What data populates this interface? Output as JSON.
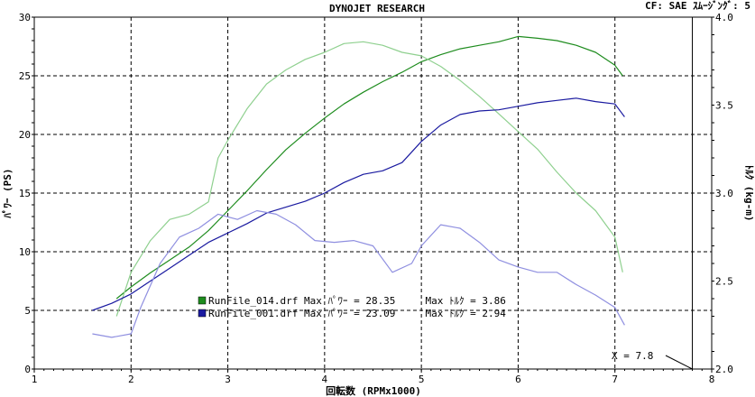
{
  "header": {
    "title": "DYNOJET  RESEARCH",
    "right": "CF: SAE  ｽﾑｰｼﾞﾝｸﾞ: 5"
  },
  "colors": {
    "power_green": "#1e8c1e",
    "torque_green": "#8fd08f",
    "power_blue": "#1a1aa0",
    "torque_blue": "#8f8fe0"
  },
  "chart_data": {
    "type": "line",
    "xlabel": "回転数 (RPMx1000)",
    "ylabel_left": "ﾊﾟﾜｰ (PS)",
    "ylabel_right": "ﾄﾙｸ (kg-m)",
    "xlim": [
      1,
      8
    ],
    "ylim_left": [
      0,
      30
    ],
    "ylim_right": [
      2.0,
      4.0
    ],
    "x_ticks": [
      "1",
      "2",
      "3",
      "4",
      "5",
      "6",
      "7",
      "8"
    ],
    "y_ticks_left": [
      "0",
      "5",
      "10",
      "15",
      "20",
      "25",
      "30"
    ],
    "y_ticks_right": [
      "2.0",
      "2.5",
      "3.0",
      "3.5",
      "4.0"
    ],
    "grid": true,
    "cursor": {
      "x": 7.8,
      "label": "X = 7.8"
    },
    "legend": [
      {
        "file": "RunFile_014.drf",
        "text": "RunFile_014.drf Max ﾊﾟﾜｰ = 28.35     Max ﾄﾙｸ = 3.86",
        "color": "#1e8c1e"
      },
      {
        "file": "RunFile_001.drf",
        "text": "RunFile_001.drf Max ﾊﾟﾜｰ = 23.09     Max ﾄﾙｸ = 2.94",
        "color": "#1a1aa0"
      }
    ],
    "series": [
      {
        "name": "RunFile_014.drf ﾊﾟﾜｰ",
        "axis": "left",
        "color": "#1e8c1e",
        "points": [
          [
            1.85,
            6.0
          ],
          [
            2.0,
            7.0
          ],
          [
            2.2,
            8.2
          ],
          [
            2.4,
            9.3
          ],
          [
            2.6,
            10.4
          ],
          [
            2.8,
            11.8
          ],
          [
            3.0,
            13.5
          ],
          [
            3.2,
            15.2
          ],
          [
            3.4,
            17.0
          ],
          [
            3.6,
            18.7
          ],
          [
            3.8,
            20.1
          ],
          [
            4.0,
            21.4
          ],
          [
            4.2,
            22.6
          ],
          [
            4.4,
            23.6
          ],
          [
            4.6,
            24.5
          ],
          [
            4.8,
            25.3
          ],
          [
            5.0,
            26.2
          ],
          [
            5.2,
            26.8
          ],
          [
            5.4,
            27.3
          ],
          [
            5.6,
            27.6
          ],
          [
            5.8,
            27.9
          ],
          [
            6.0,
            28.35
          ],
          [
            6.2,
            28.2
          ],
          [
            6.4,
            28.0
          ],
          [
            6.6,
            27.6
          ],
          [
            6.8,
            27.0
          ],
          [
            7.0,
            25.9
          ],
          [
            7.08,
            25.0
          ]
        ]
      },
      {
        "name": "RunFile_014.drf ﾄﾙｸ",
        "axis": "right",
        "color": "#8fd08f",
        "points": [
          [
            1.85,
            2.3
          ],
          [
            2.0,
            2.55
          ],
          [
            2.2,
            2.73
          ],
          [
            2.4,
            2.85
          ],
          [
            2.6,
            2.88
          ],
          [
            2.8,
            2.95
          ],
          [
            2.9,
            3.2
          ],
          [
            3.0,
            3.3
          ],
          [
            3.2,
            3.48
          ],
          [
            3.4,
            3.62
          ],
          [
            3.6,
            3.7
          ],
          [
            3.8,
            3.76
          ],
          [
            4.0,
            3.8
          ],
          [
            4.2,
            3.85
          ],
          [
            4.4,
            3.86
          ],
          [
            4.6,
            3.84
          ],
          [
            4.8,
            3.8
          ],
          [
            5.0,
            3.78
          ],
          [
            5.2,
            3.72
          ],
          [
            5.4,
            3.64
          ],
          [
            5.6,
            3.55
          ],
          [
            5.8,
            3.45
          ],
          [
            6.0,
            3.35
          ],
          [
            6.2,
            3.25
          ],
          [
            6.4,
            3.12
          ],
          [
            6.6,
            3.0
          ],
          [
            6.8,
            2.9
          ],
          [
            7.0,
            2.75
          ],
          [
            7.08,
            2.55
          ]
        ]
      },
      {
        "name": "RunFile_001.drf ﾊﾟﾜｰ",
        "axis": "left",
        "color": "#1a1aa0",
        "points": [
          [
            1.6,
            5.0
          ],
          [
            1.8,
            5.6
          ],
          [
            2.0,
            6.4
          ],
          [
            2.2,
            7.5
          ],
          [
            2.4,
            8.6
          ],
          [
            2.6,
            9.7
          ],
          [
            2.8,
            10.8
          ],
          [
            3.0,
            11.6
          ],
          [
            3.2,
            12.4
          ],
          [
            3.4,
            13.3
          ],
          [
            3.6,
            13.8
          ],
          [
            3.8,
            14.3
          ],
          [
            4.0,
            15.0
          ],
          [
            4.2,
            15.9
          ],
          [
            4.4,
            16.6
          ],
          [
            4.6,
            16.9
          ],
          [
            4.8,
            17.6
          ],
          [
            5.0,
            19.4
          ],
          [
            5.2,
            20.8
          ],
          [
            5.4,
            21.7
          ],
          [
            5.6,
            22.0
          ],
          [
            5.8,
            22.1
          ],
          [
            6.0,
            22.4
          ],
          [
            6.2,
            22.7
          ],
          [
            6.4,
            22.9
          ],
          [
            6.6,
            23.09
          ],
          [
            6.8,
            22.8
          ],
          [
            7.0,
            22.6
          ],
          [
            7.1,
            21.5
          ]
        ]
      },
      {
        "name": "RunFile_001.drf ﾄﾙｸ",
        "axis": "right",
        "color": "#8f8fe0",
        "points": [
          [
            1.6,
            2.2
          ],
          [
            1.8,
            2.18
          ],
          [
            2.0,
            2.2
          ],
          [
            2.1,
            2.35
          ],
          [
            2.3,
            2.6
          ],
          [
            2.5,
            2.75
          ],
          [
            2.7,
            2.8
          ],
          [
            2.9,
            2.88
          ],
          [
            3.1,
            2.85
          ],
          [
            3.3,
            2.9
          ],
          [
            3.5,
            2.88
          ],
          [
            3.7,
            2.82
          ],
          [
            3.9,
            2.73
          ],
          [
            4.1,
            2.72
          ],
          [
            4.3,
            2.73
          ],
          [
            4.5,
            2.7
          ],
          [
            4.7,
            2.55
          ],
          [
            4.9,
            2.6
          ],
          [
            5.0,
            2.7
          ],
          [
            5.2,
            2.82
          ],
          [
            5.4,
            2.8
          ],
          [
            5.6,
            2.72
          ],
          [
            5.8,
            2.62
          ],
          [
            6.0,
            2.58
          ],
          [
            6.2,
            2.55
          ],
          [
            6.4,
            2.55
          ],
          [
            6.6,
            2.48
          ],
          [
            6.8,
            2.42
          ],
          [
            7.0,
            2.35
          ],
          [
            7.1,
            2.25
          ]
        ]
      }
    ]
  }
}
